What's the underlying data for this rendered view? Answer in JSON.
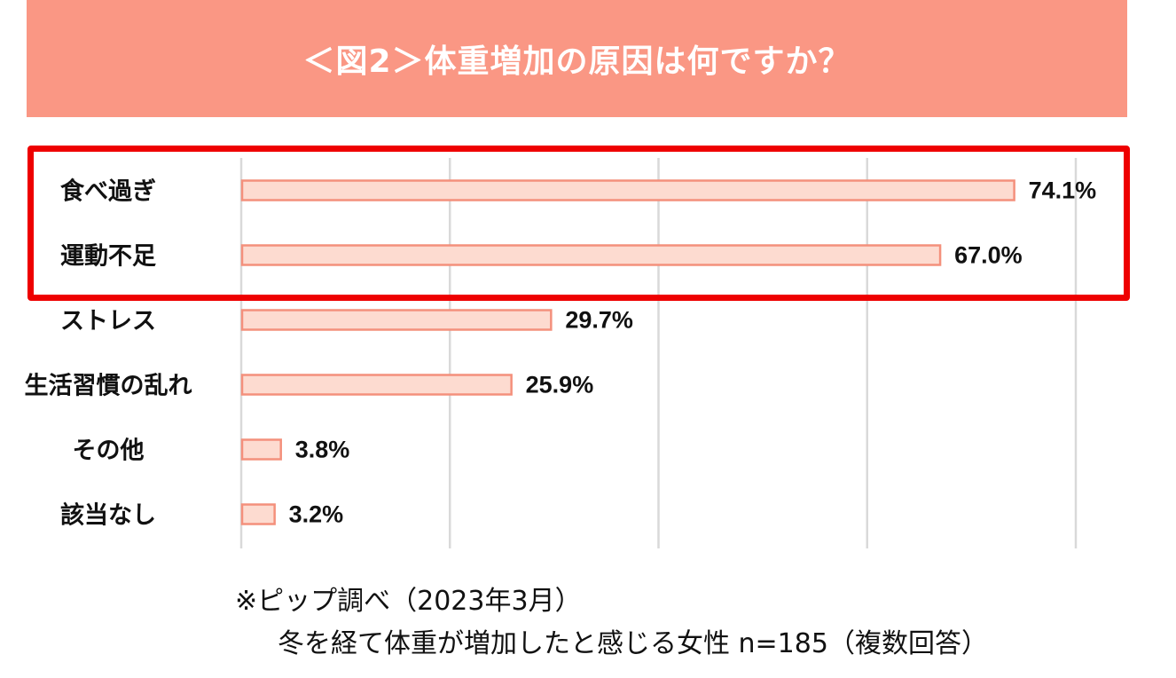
{
  "header": {
    "title": "＜図2＞体重増加の原因は何ですか？"
  },
  "chart_data": {
    "type": "bar",
    "orientation": "horizontal",
    "categories": [
      "食べ過ぎ",
      "運動不足",
      "ストレス",
      "生活習慣の乱れ",
      "その他",
      "該当なし"
    ],
    "values": [
      74.1,
      67.0,
      29.7,
      25.9,
      3.8,
      3.2
    ],
    "value_labels": [
      "74.1%",
      "67.0%",
      "29.7%",
      "25.9%",
      "3.8%",
      "3.2%"
    ],
    "xlim": [
      0,
      80
    ],
    "grid": true,
    "bar_fill": "#fddbd0",
    "bar_stroke": "#f4907c",
    "highlight_categories": [
      "食べ過ぎ",
      "運動不足"
    ],
    "highlight_color": "#ee0000"
  },
  "notes": {
    "source": "※ピップ調べ（2023年3月）",
    "sample": "冬を経て体重が増加したと感じる女性 n=185（複数回答）"
  }
}
